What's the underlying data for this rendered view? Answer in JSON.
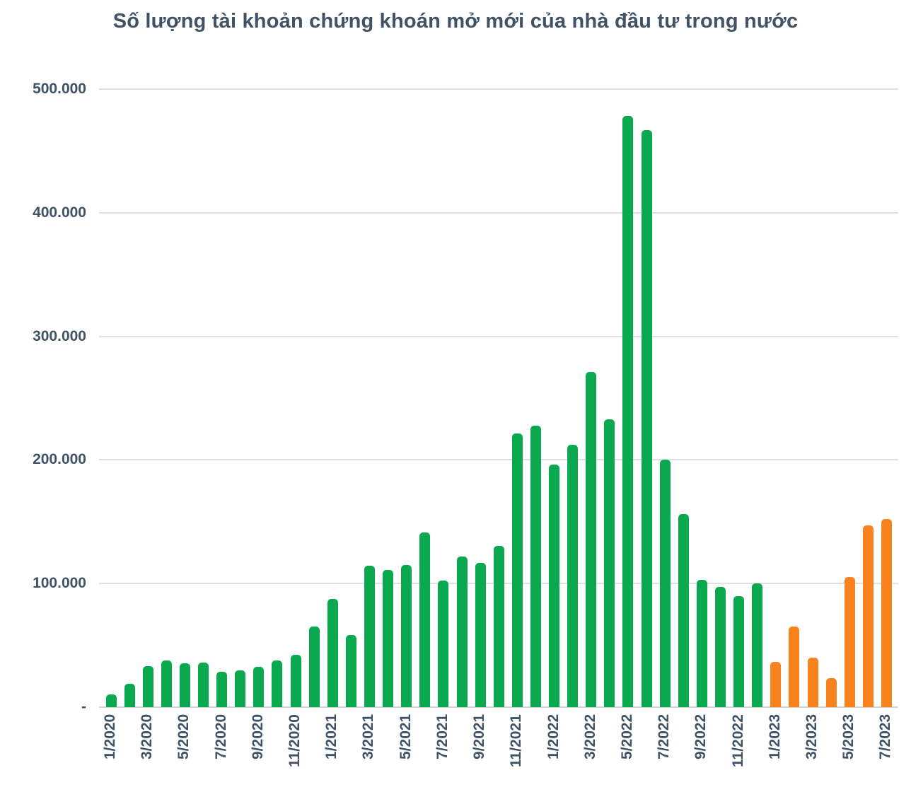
{
  "title": "Số lượng tài khoản chứng khoán mở mới của nhà đầu tư trong nước",
  "colors": {
    "green": "#0AA84F",
    "orange": "#F8821E",
    "text": "#3F5266",
    "gridline": "#E0E0E0",
    "baseline": "#D9D4D4"
  },
  "chart_data": {
    "type": "bar",
    "title": "Số lượng tài khoản chứng khoán mở mới của nhà đầu tư trong nước",
    "xlabel": "",
    "ylabel": "",
    "ylim": [
      0,
      500000
    ],
    "grid": true,
    "legend": false,
    "y_ticks": [
      {
        "label": "500.000",
        "value": 500000
      },
      {
        "label": "400.000",
        "value": 400000
      },
      {
        "label": "300.000",
        "value": 300000
      },
      {
        "label": "200.000",
        "value": 200000
      },
      {
        "label": "100.000",
        "value": 100000
      },
      {
        "label": "-",
        "value": 0
      }
    ],
    "x_tick_labels": [
      "1/2020",
      "3/2020",
      "5/2020",
      "7/2020",
      "9/2020",
      "11/2020",
      "1/2021",
      "3/2021",
      "5/2021",
      "7/2021",
      "9/2021",
      "11/2021",
      "1/2022",
      "3/2022",
      "5/2022",
      "7/2022",
      "9/2022",
      "11/2022",
      "1/2023",
      "3/2023",
      "5/2023",
      "7/2023"
    ],
    "categories": [
      "1/2020",
      "2/2020",
      "3/2020",
      "4/2020",
      "5/2020",
      "6/2020",
      "7/2020",
      "8/2020",
      "9/2020",
      "10/2020",
      "11/2020",
      "12/2020",
      "1/2021",
      "2/2021",
      "3/2021",
      "4/2021",
      "5/2021",
      "6/2021",
      "7/2021",
      "8/2021",
      "9/2021",
      "10/2021",
      "11/2021",
      "12/2021",
      "1/2022",
      "2/2022",
      "3/2022",
      "4/2022",
      "5/2022",
      "6/2022",
      "7/2022",
      "8/2022",
      "9/2022",
      "10/2022",
      "11/2022",
      "12/2022",
      "1/2023",
      "2/2023",
      "3/2023",
      "4/2023",
      "5/2023",
      "6/2023",
      "7/2023"
    ],
    "values": [
      10500,
      19000,
      33000,
      38000,
      35500,
      36000,
      28500,
      29500,
      32500,
      37500,
      42500,
      65000,
      87500,
      58500,
      114500,
      111000,
      115000,
      141500,
      102500,
      122000,
      116500,
      130500,
      221500,
      227500,
      196000,
      212500,
      271000,
      233000,
      478000,
      467000,
      200000,
      156000,
      103000,
      97500,
      90000,
      100000,
      36500,
      65000,
      40000,
      23500,
      105500,
      147000,
      152000
    ],
    "bar_color_keys": [
      "green",
      "green",
      "green",
      "green",
      "green",
      "green",
      "green",
      "green",
      "green",
      "green",
      "green",
      "green",
      "green",
      "green",
      "green",
      "green",
      "green",
      "green",
      "green",
      "green",
      "green",
      "green",
      "green",
      "green",
      "green",
      "green",
      "green",
      "green",
      "green",
      "green",
      "green",
      "green",
      "green",
      "green",
      "green",
      "green",
      "orange",
      "orange",
      "orange",
      "orange",
      "orange",
      "orange",
      "orange"
    ]
  }
}
